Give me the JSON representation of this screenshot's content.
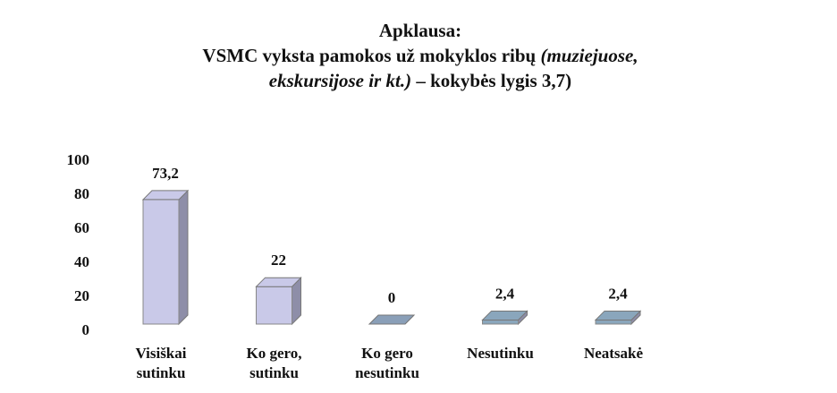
{
  "chart_data": {
    "type": "bar3d",
    "title": [
      [
        {
          "text": "Apklausa:",
          "italic": false
        }
      ],
      [
        {
          "text": "VSMC vyksta pamokos už mokyklos ribų ",
          "italic": false
        },
        {
          "text": "(muziejuose,",
          "italic": true
        }
      ],
      [
        {
          "text": "ekskursijose ir kt.)",
          "italic": true
        },
        {
          "text": " – kokybės lygis 3,7)",
          "italic": false
        }
      ]
    ],
    "categories": [
      [
        "Visiškai",
        "sutinku"
      ],
      [
        "Ko gero,",
        "sutinku"
      ],
      [
        "Ko gero",
        "nesutinku"
      ],
      [
        "Nesutinku"
      ],
      [
        "Neatsakė"
      ]
    ],
    "values": [
      73.2,
      22,
      0,
      2.4,
      2.4
    ],
    "value_labels": [
      "73,2",
      "22",
      "0",
      "2,4",
      "2,4"
    ],
    "colors": [
      "#c9c9e8",
      "#c9c9e8",
      "#8a9fb8",
      "#8aa6bc",
      "#8aa6bc"
    ],
    "ylim": [
      0,
      100
    ],
    "yticks": [
      0,
      20,
      40,
      60,
      80,
      100
    ],
    "grid": false
  }
}
